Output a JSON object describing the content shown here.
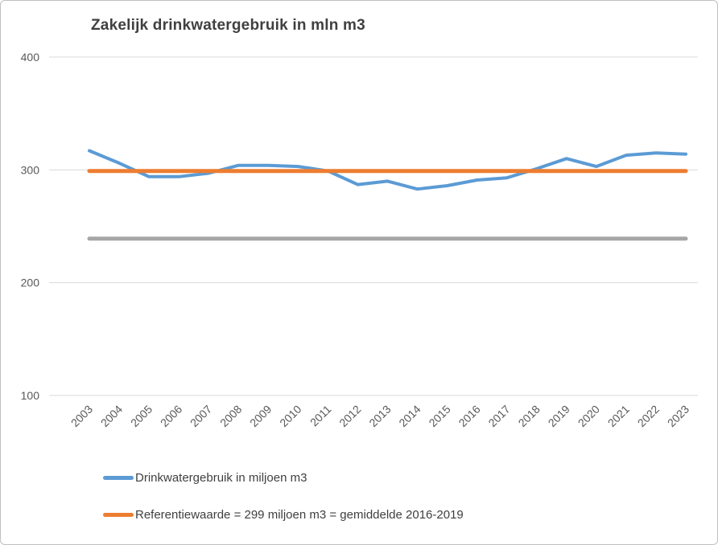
{
  "chart_data": {
    "type": "line",
    "title": "Zakelijk drinkwatergebruik in mln m3",
    "x": [
      2003,
      2004,
      2005,
      2006,
      2007,
      2008,
      2009,
      2010,
      2011,
      2012,
      2013,
      2014,
      2015,
      2016,
      2017,
      2018,
      2019,
      2020,
      2021,
      2022,
      2023
    ],
    "series": [
      {
        "name": "Drinkwatergebruik in miljoen m3",
        "color": "#5B9BD5",
        "stroke_width": 4,
        "values": [
          317,
          306,
          294,
          294,
          297,
          304,
          304,
          303,
          299,
          287,
          290,
          283,
          286,
          291,
          293,
          301,
          310,
          303,
          313,
          315,
          314
        ]
      },
      {
        "name": "Referentiewaarde = 299 miljoen m3 = gemiddelde 2016-2019",
        "color": "#ED7D31",
        "stroke_width": 5,
        "constant": 299
      },
      {
        "name": "unlabeled-gray-reference-line",
        "color": "#A6A6A6",
        "stroke_width": 5,
        "constant": 239
      }
    ],
    "ylim": [
      100,
      400
    ],
    "yticks": [
      400,
      300,
      200,
      100
    ],
    "grid": true,
    "legend_position": "bottom-left",
    "legend": [
      {
        "label": "Drinkwatergebruik in miljoen m3",
        "color": "#5B9BD5"
      },
      {
        "label": "Referentiewaarde = 299 miljoen m3 = gemiddelde 2016-2019",
        "color": "#ED7D31"
      }
    ],
    "axis_label_color": "#595959",
    "gridline_color": "#D9D9D9",
    "title_color": "#404040"
  }
}
